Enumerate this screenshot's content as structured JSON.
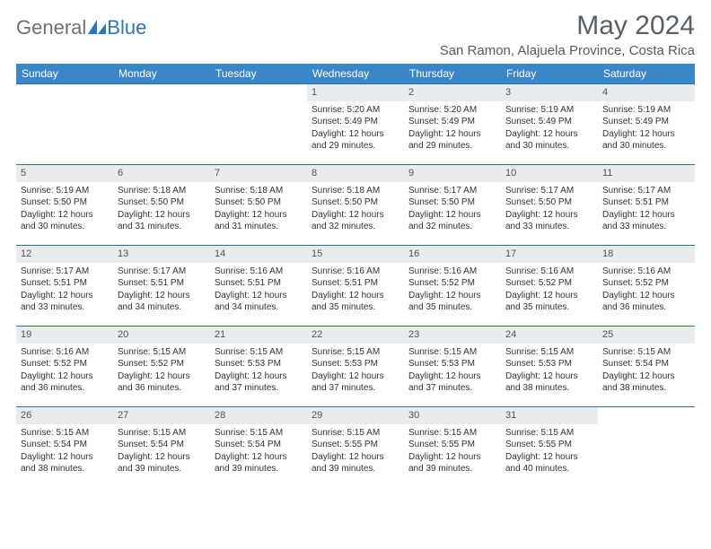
{
  "brand": {
    "part1": "General",
    "part2": "Blue"
  },
  "title": "May 2024",
  "location": "San Ramon, Alajuela Province, Costa Rica",
  "colors": {
    "header_bg": "#3b86c7",
    "row_border": "#2f6da6",
    "daynum_bg": "#e8ecef",
    "text": "#333333",
    "title_color": "#57606a"
  },
  "weekdays": [
    "Sunday",
    "Monday",
    "Tuesday",
    "Wednesday",
    "Thursday",
    "Friday",
    "Saturday"
  ],
  "weeks": [
    [
      null,
      null,
      null,
      {
        "n": "1",
        "sunrise": "Sunrise: 5:20 AM",
        "sunset": "Sunset: 5:49 PM",
        "day1": "Daylight: 12 hours",
        "day2": "and 29 minutes."
      },
      {
        "n": "2",
        "sunrise": "Sunrise: 5:20 AM",
        "sunset": "Sunset: 5:49 PM",
        "day1": "Daylight: 12 hours",
        "day2": "and 29 minutes."
      },
      {
        "n": "3",
        "sunrise": "Sunrise: 5:19 AM",
        "sunset": "Sunset: 5:49 PM",
        "day1": "Daylight: 12 hours",
        "day2": "and 30 minutes."
      },
      {
        "n": "4",
        "sunrise": "Sunrise: 5:19 AM",
        "sunset": "Sunset: 5:49 PM",
        "day1": "Daylight: 12 hours",
        "day2": "and 30 minutes."
      }
    ],
    [
      {
        "n": "5",
        "sunrise": "Sunrise: 5:19 AM",
        "sunset": "Sunset: 5:50 PM",
        "day1": "Daylight: 12 hours",
        "day2": "and 30 minutes."
      },
      {
        "n": "6",
        "sunrise": "Sunrise: 5:18 AM",
        "sunset": "Sunset: 5:50 PM",
        "day1": "Daylight: 12 hours",
        "day2": "and 31 minutes."
      },
      {
        "n": "7",
        "sunrise": "Sunrise: 5:18 AM",
        "sunset": "Sunset: 5:50 PM",
        "day1": "Daylight: 12 hours",
        "day2": "and 31 minutes."
      },
      {
        "n": "8",
        "sunrise": "Sunrise: 5:18 AM",
        "sunset": "Sunset: 5:50 PM",
        "day1": "Daylight: 12 hours",
        "day2": "and 32 minutes."
      },
      {
        "n": "9",
        "sunrise": "Sunrise: 5:17 AM",
        "sunset": "Sunset: 5:50 PM",
        "day1": "Daylight: 12 hours",
        "day2": "and 32 minutes."
      },
      {
        "n": "10",
        "sunrise": "Sunrise: 5:17 AM",
        "sunset": "Sunset: 5:50 PM",
        "day1": "Daylight: 12 hours",
        "day2": "and 33 minutes."
      },
      {
        "n": "11",
        "sunrise": "Sunrise: 5:17 AM",
        "sunset": "Sunset: 5:51 PM",
        "day1": "Daylight: 12 hours",
        "day2": "and 33 minutes."
      }
    ],
    [
      {
        "n": "12",
        "sunrise": "Sunrise: 5:17 AM",
        "sunset": "Sunset: 5:51 PM",
        "day1": "Daylight: 12 hours",
        "day2": "and 33 minutes."
      },
      {
        "n": "13",
        "sunrise": "Sunrise: 5:17 AM",
        "sunset": "Sunset: 5:51 PM",
        "day1": "Daylight: 12 hours",
        "day2": "and 34 minutes."
      },
      {
        "n": "14",
        "sunrise": "Sunrise: 5:16 AM",
        "sunset": "Sunset: 5:51 PM",
        "day1": "Daylight: 12 hours",
        "day2": "and 34 minutes."
      },
      {
        "n": "15",
        "sunrise": "Sunrise: 5:16 AM",
        "sunset": "Sunset: 5:51 PM",
        "day1": "Daylight: 12 hours",
        "day2": "and 35 minutes."
      },
      {
        "n": "16",
        "sunrise": "Sunrise: 5:16 AM",
        "sunset": "Sunset: 5:52 PM",
        "day1": "Daylight: 12 hours",
        "day2": "and 35 minutes."
      },
      {
        "n": "17",
        "sunrise": "Sunrise: 5:16 AM",
        "sunset": "Sunset: 5:52 PM",
        "day1": "Daylight: 12 hours",
        "day2": "and 35 minutes."
      },
      {
        "n": "18",
        "sunrise": "Sunrise: 5:16 AM",
        "sunset": "Sunset: 5:52 PM",
        "day1": "Daylight: 12 hours",
        "day2": "and 36 minutes."
      }
    ],
    [
      {
        "n": "19",
        "sunrise": "Sunrise: 5:16 AM",
        "sunset": "Sunset: 5:52 PM",
        "day1": "Daylight: 12 hours",
        "day2": "and 36 minutes."
      },
      {
        "n": "20",
        "sunrise": "Sunrise: 5:15 AM",
        "sunset": "Sunset: 5:52 PM",
        "day1": "Daylight: 12 hours",
        "day2": "and 36 minutes."
      },
      {
        "n": "21",
        "sunrise": "Sunrise: 5:15 AM",
        "sunset": "Sunset: 5:53 PM",
        "day1": "Daylight: 12 hours",
        "day2": "and 37 minutes."
      },
      {
        "n": "22",
        "sunrise": "Sunrise: 5:15 AM",
        "sunset": "Sunset: 5:53 PM",
        "day1": "Daylight: 12 hours",
        "day2": "and 37 minutes."
      },
      {
        "n": "23",
        "sunrise": "Sunrise: 5:15 AM",
        "sunset": "Sunset: 5:53 PM",
        "day1": "Daylight: 12 hours",
        "day2": "and 37 minutes."
      },
      {
        "n": "24",
        "sunrise": "Sunrise: 5:15 AM",
        "sunset": "Sunset: 5:53 PM",
        "day1": "Daylight: 12 hours",
        "day2": "and 38 minutes."
      },
      {
        "n": "25",
        "sunrise": "Sunrise: 5:15 AM",
        "sunset": "Sunset: 5:54 PM",
        "day1": "Daylight: 12 hours",
        "day2": "and 38 minutes."
      }
    ],
    [
      {
        "n": "26",
        "sunrise": "Sunrise: 5:15 AM",
        "sunset": "Sunset: 5:54 PM",
        "day1": "Daylight: 12 hours",
        "day2": "and 38 minutes."
      },
      {
        "n": "27",
        "sunrise": "Sunrise: 5:15 AM",
        "sunset": "Sunset: 5:54 PM",
        "day1": "Daylight: 12 hours",
        "day2": "and 39 minutes."
      },
      {
        "n": "28",
        "sunrise": "Sunrise: 5:15 AM",
        "sunset": "Sunset: 5:54 PM",
        "day1": "Daylight: 12 hours",
        "day2": "and 39 minutes."
      },
      {
        "n": "29",
        "sunrise": "Sunrise: 5:15 AM",
        "sunset": "Sunset: 5:55 PM",
        "day1": "Daylight: 12 hours",
        "day2": "and 39 minutes."
      },
      {
        "n": "30",
        "sunrise": "Sunrise: 5:15 AM",
        "sunset": "Sunset: 5:55 PM",
        "day1": "Daylight: 12 hours",
        "day2": "and 39 minutes."
      },
      {
        "n": "31",
        "sunrise": "Sunrise: 5:15 AM",
        "sunset": "Sunset: 5:55 PM",
        "day1": "Daylight: 12 hours",
        "day2": "and 40 minutes."
      },
      null
    ]
  ]
}
